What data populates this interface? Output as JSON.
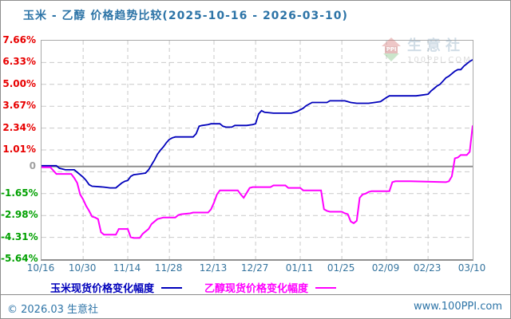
{
  "header": {
    "title": "玉米 - 乙醇 价格趋势比较(2025-10-16 - 2026-03-10)"
  },
  "watermark": {
    "logo_text": "PPI",
    "brand": "生意社",
    "site": "100PPI.COM"
  },
  "legend": [
    {
      "label": "玉米现货价格变化幅度",
      "color": "#0000bb"
    },
    {
      "label": "乙醇现货价格变化幅度",
      "color": "#ff00ff"
    }
  ],
  "footer": {
    "copyright": "© 2026.03 生意社",
    "site": "www.100PPI.com"
  },
  "chart_data": {
    "type": "line",
    "title": "玉米 - 乙醇 价格趋势比较(2025-10-16 - 2026-03-10)",
    "date_range": {
      "start": "2025-10-16",
      "end": "2026-03-10",
      "days": 145
    },
    "ylim": [
      -5.64,
      7.66
    ],
    "grid": true,
    "zero_line": 0,
    "grid_y_dashed": [
      6.33,
      5.0,
      3.67,
      2.34,
      1.01,
      -0.32,
      -1.65,
      -2.98,
      -4.31
    ],
    "y_ticks": [
      {
        "label": "7.66%",
        "value": 7.66,
        "color": "#e80000"
      },
      {
        "label": "6.33%",
        "value": 6.33,
        "color": "#e80000"
      },
      {
        "label": "5.00%",
        "value": 5.0,
        "color": "#e80000"
      },
      {
        "label": "3.67%",
        "value": 3.67,
        "color": "#e80000"
      },
      {
        "label": "2.34%",
        "value": 2.34,
        "color": "#e80000"
      },
      {
        "label": "1.01%",
        "value": 1.01,
        "color": "#e80000"
      },
      {
        "label": "0",
        "value": 0,
        "color": "#a0a0a0"
      },
      {
        "label": "-1.65%",
        "value": -1.65,
        "color": "#00a000"
      },
      {
        "label": "-2.98%",
        "value": -2.98,
        "color": "#00a000"
      },
      {
        "label": "-4.31%",
        "value": -4.31,
        "color": "#00a000"
      },
      {
        "label": "-5.64%",
        "value": -5.64,
        "color": "#00a000"
      }
    ],
    "x_ticks": [
      {
        "label": "10/16",
        "day": 0,
        "grid": false
      },
      {
        "label": "10/30",
        "day": 14,
        "grid": true
      },
      {
        "label": "11/14",
        "day": 29,
        "grid": true
      },
      {
        "label": "11/28",
        "day": 43,
        "grid": true
      },
      {
        "label": "12/13",
        "day": 58,
        "grid": true
      },
      {
        "label": "12/27",
        "day": 72,
        "grid": true
      },
      {
        "label": "01/11",
        "day": 87,
        "grid": true
      },
      {
        "label": "01/25",
        "day": 101,
        "grid": true
      },
      {
        "label": "02/09",
        "day": 116,
        "grid": true
      },
      {
        "label": "02/23",
        "day": 130,
        "grid": true
      },
      {
        "label": "03/10",
        "day": 145,
        "grid": false
      }
    ],
    "series": [
      {
        "name": "玉米现货价格变化幅度",
        "color": "#0000bb",
        "points": [
          [
            0,
            0.05
          ],
          [
            5,
            0.05
          ],
          [
            6,
            -0.1
          ],
          [
            8,
            -0.2
          ],
          [
            11,
            -0.2
          ],
          [
            12,
            -0.35
          ],
          [
            13,
            -0.5
          ],
          [
            14,
            -0.65
          ],
          [
            15,
            -0.85
          ],
          [
            16,
            -1.1
          ],
          [
            17,
            -1.2
          ],
          [
            21,
            -1.25
          ],
          [
            23,
            -1.3
          ],
          [
            25,
            -1.3
          ],
          [
            26,
            -1.15
          ],
          [
            27,
            -1.0
          ],
          [
            28,
            -0.9
          ],
          [
            29,
            -0.85
          ],
          [
            30,
            -0.6
          ],
          [
            31,
            -0.5
          ],
          [
            33,
            -0.45
          ],
          [
            35,
            -0.4
          ],
          [
            36,
            -0.2
          ],
          [
            37,
            0.1
          ],
          [
            38,
            0.4
          ],
          [
            39,
            0.75
          ],
          [
            40,
            1.0
          ],
          [
            41,
            1.2
          ],
          [
            42,
            1.45
          ],
          [
            43,
            1.65
          ],
          [
            44,
            1.75
          ],
          [
            45,
            1.8
          ],
          [
            51,
            1.8
          ],
          [
            52,
            2.0
          ],
          [
            53,
            2.45
          ],
          [
            54,
            2.5
          ],
          [
            56,
            2.55
          ],
          [
            57,
            2.6
          ],
          [
            60,
            2.6
          ],
          [
            61,
            2.45
          ],
          [
            62,
            2.4
          ],
          [
            64,
            2.4
          ],
          [
            65,
            2.5
          ],
          [
            69,
            2.5
          ],
          [
            71,
            2.55
          ],
          [
            72,
            2.6
          ],
          [
            73,
            3.2
          ],
          [
            74,
            3.4
          ],
          [
            75,
            3.3
          ],
          [
            78,
            3.25
          ],
          [
            84,
            3.25
          ],
          [
            86,
            3.35
          ],
          [
            87,
            3.45
          ],
          [
            88,
            3.55
          ],
          [
            89,
            3.7
          ],
          [
            90,
            3.8
          ],
          [
            91,
            3.9
          ],
          [
            96,
            3.9
          ],
          [
            97,
            4.0
          ],
          [
            102,
            4.0
          ],
          [
            104,
            3.9
          ],
          [
            106,
            3.85
          ],
          [
            110,
            3.85
          ],
          [
            112,
            3.9
          ],
          [
            114,
            3.95
          ],
          [
            116,
            4.2
          ],
          [
            117,
            4.3
          ],
          [
            126,
            4.3
          ],
          [
            128,
            4.35
          ],
          [
            130,
            4.4
          ],
          [
            131,
            4.6
          ],
          [
            132,
            4.75
          ],
          [
            133,
            4.9
          ],
          [
            134,
            5.0
          ],
          [
            135,
            5.2
          ],
          [
            136,
            5.4
          ],
          [
            137,
            5.5
          ],
          [
            138,
            5.65
          ],
          [
            139,
            5.8
          ],
          [
            140,
            5.9
          ],
          [
            141,
            5.9
          ],
          [
            142,
            6.1
          ],
          [
            143,
            6.25
          ],
          [
            144,
            6.4
          ],
          [
            145,
            6.5
          ]
        ]
      },
      {
        "name": "乙醇现货价格变化幅度",
        "color": "#ff00ff",
        "points": [
          [
            0,
            -0.05
          ],
          [
            3,
            -0.05
          ],
          [
            4,
            -0.25
          ],
          [
            5,
            -0.45
          ],
          [
            10,
            -0.45
          ],
          [
            11,
            -0.7
          ],
          [
            12,
            -1.0
          ],
          [
            13,
            -1.7
          ],
          [
            14,
            -2.0
          ],
          [
            15,
            -2.4
          ],
          [
            16,
            -2.7
          ],
          [
            17,
            -3.05
          ],
          [
            18,
            -3.1
          ],
          [
            19,
            -3.2
          ],
          [
            20,
            -4.0
          ],
          [
            21,
            -4.15
          ],
          [
            25,
            -4.15
          ],
          [
            26,
            -3.8
          ],
          [
            29,
            -3.8
          ],
          [
            30,
            -4.3
          ],
          [
            31,
            -4.35
          ],
          [
            33,
            -4.35
          ],
          [
            34,
            -4.1
          ],
          [
            35,
            -3.95
          ],
          [
            36,
            -3.8
          ],
          [
            37,
            -3.5
          ],
          [
            38,
            -3.35
          ],
          [
            39,
            -3.2
          ],
          [
            40,
            -3.15
          ],
          [
            41,
            -3.1
          ],
          [
            45,
            -3.1
          ],
          [
            46,
            -2.95
          ],
          [
            47,
            -2.9
          ],
          [
            50,
            -2.85
          ],
          [
            51,
            -2.8
          ],
          [
            56,
            -2.8
          ],
          [
            57,
            -2.6
          ],
          [
            58,
            -2.2
          ],
          [
            59,
            -1.7
          ],
          [
            60,
            -1.45
          ],
          [
            66,
            -1.45
          ],
          [
            67,
            -1.7
          ],
          [
            68,
            -1.9
          ],
          [
            69,
            -1.6
          ],
          [
            70,
            -1.3
          ],
          [
            71,
            -1.25
          ],
          [
            77,
            -1.25
          ],
          [
            78,
            -1.15
          ],
          [
            82,
            -1.15
          ],
          [
            83,
            -1.3
          ],
          [
            87,
            -1.3
          ],
          [
            88,
            -1.45
          ],
          [
            94,
            -1.45
          ],
          [
            95,
            -2.6
          ],
          [
            96,
            -2.7
          ],
          [
            97,
            -2.75
          ],
          [
            101,
            -2.75
          ],
          [
            102,
            -2.85
          ],
          [
            103,
            -2.9
          ],
          [
            104,
            -3.35
          ],
          [
            105,
            -3.45
          ],
          [
            106,
            -3.3
          ],
          [
            107,
            -1.9
          ],
          [
            108,
            -1.7
          ],
          [
            109,
            -1.65
          ],
          [
            110,
            -1.55
          ],
          [
            111,
            -1.5
          ],
          [
            117,
            -1.5
          ],
          [
            118,
            -0.95
          ],
          [
            119,
            -0.9
          ],
          [
            124,
            -0.9
          ],
          [
            136,
            -0.95
          ],
          [
            137,
            -0.9
          ],
          [
            138,
            -0.6
          ],
          [
            139,
            0.5
          ],
          [
            140,
            0.55
          ],
          [
            141,
            0.7
          ],
          [
            143,
            0.7
          ],
          [
            144,
            0.9
          ],
          [
            145,
            2.5
          ]
        ]
      }
    ]
  }
}
